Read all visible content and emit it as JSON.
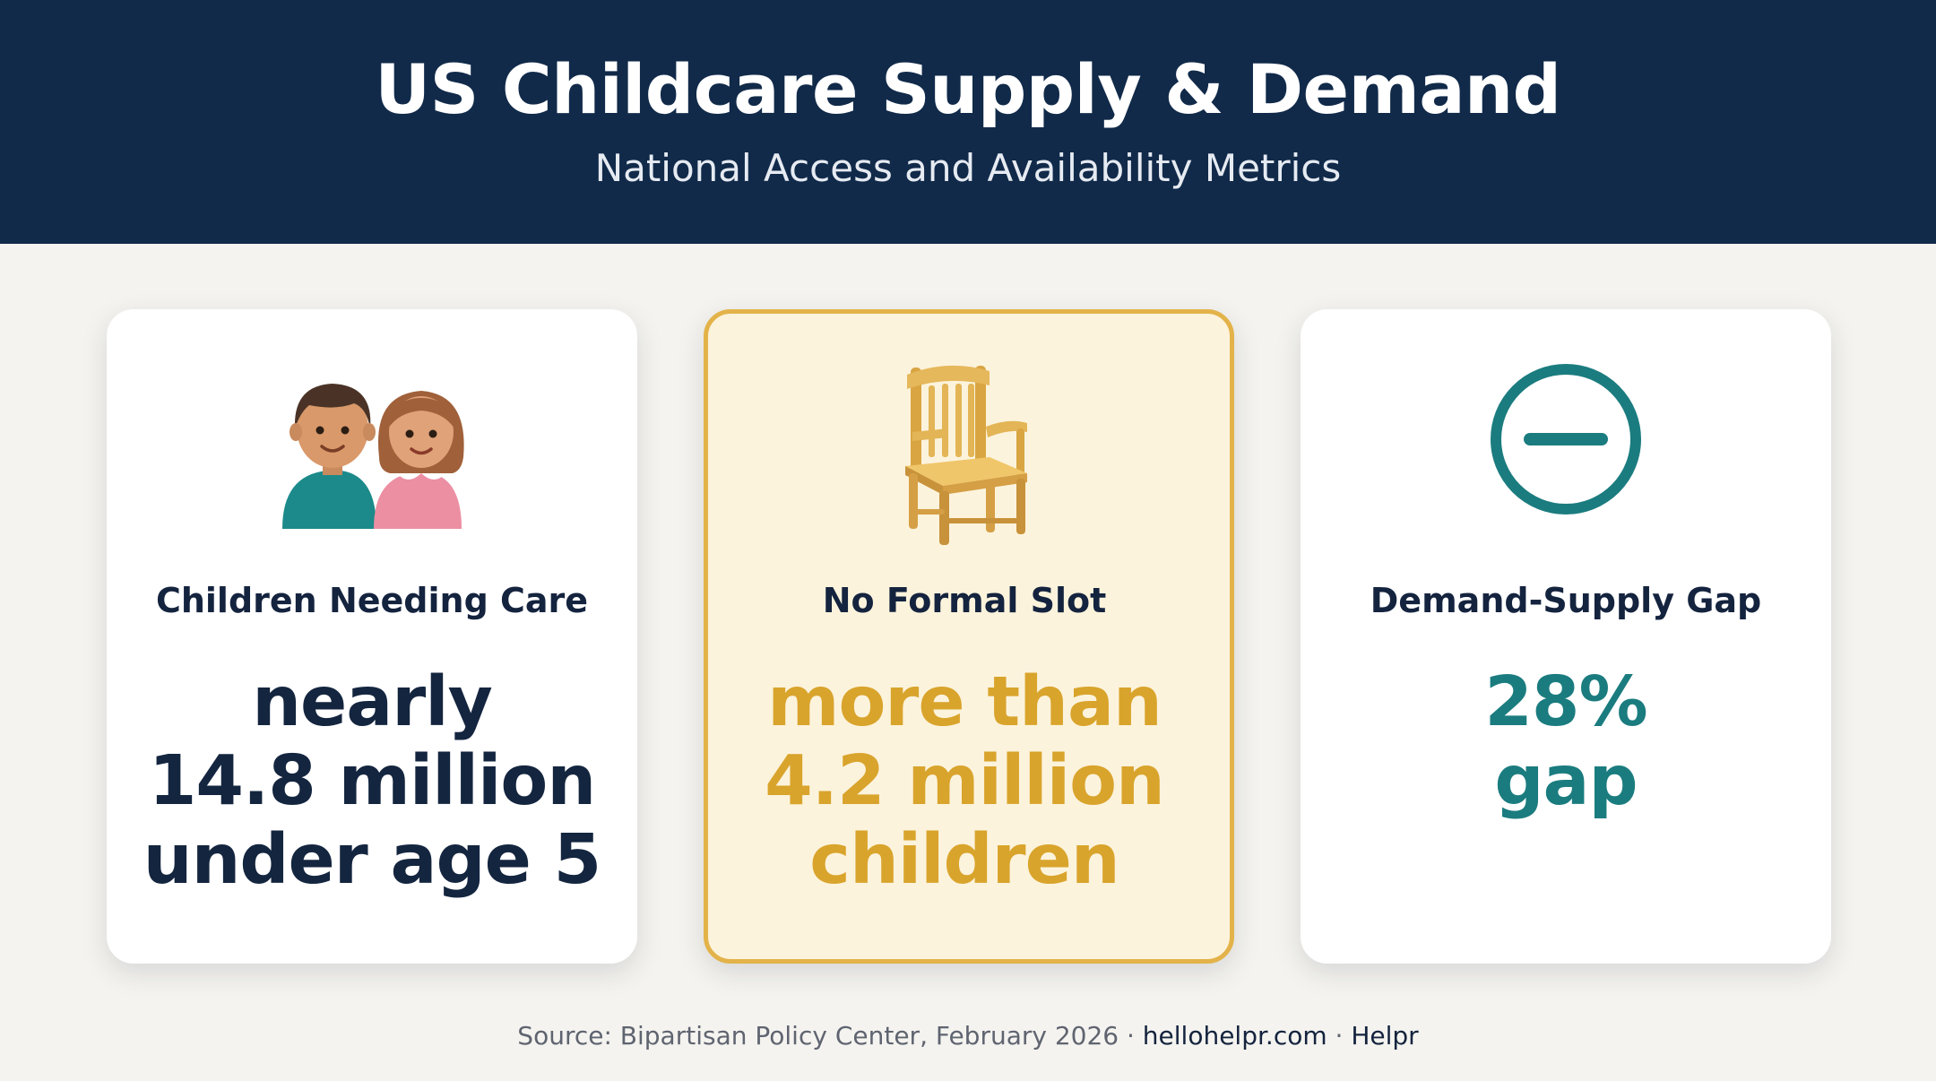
{
  "header": {
    "title": "US Childcare Supply & Demand",
    "subtitle": "National Access and Availability Metrics"
  },
  "cards": [
    {
      "icon": "two-children-icon",
      "label": "Children Needing Care",
      "value_lines": [
        "nearly",
        "14.8 million",
        "under age 5"
      ],
      "value_color": "#14253f"
    },
    {
      "icon": "chair-icon",
      "label": "No Formal Slot",
      "value_lines": [
        "more than",
        "4.2 million",
        "children"
      ],
      "value_color": "#d9a42c",
      "highlighted": true
    },
    {
      "icon": "minus-circle-icon",
      "label": "Demand-Supply Gap",
      "value_lines": [
        "28%",
        "gap"
      ],
      "value_color": "#1b7c7f"
    }
  ],
  "footer": {
    "source": "Source: Bipartisan Policy Center, February 2026 · ",
    "site": "hellohelpr.com",
    "separator": " · ",
    "brand": "Helpr"
  },
  "colors": {
    "header_bg": "#112a4a",
    "page_bg": "#f4f3ef",
    "highlight_border": "#e3b34a",
    "highlight_bg": "#fcf3dc"
  }
}
